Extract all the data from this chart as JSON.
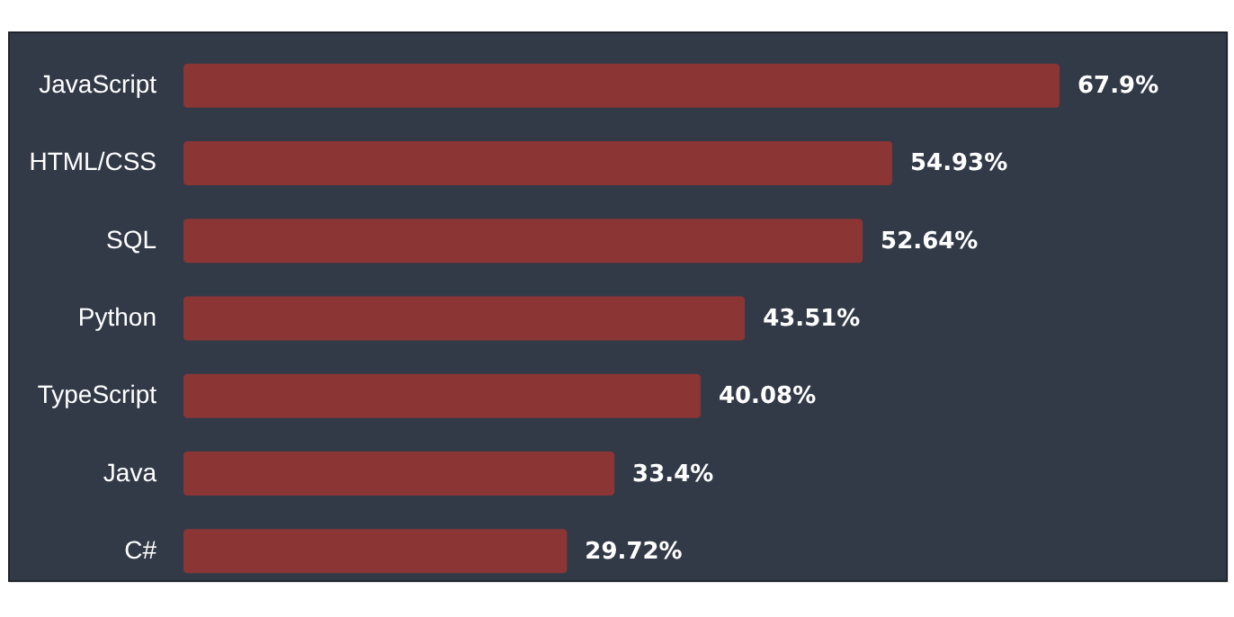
{
  "chart_data": {
    "type": "bar",
    "orientation": "horizontal",
    "data_labels": true,
    "categories": [
      "JavaScript",
      "HTML/CSS",
      "SQL",
      "Python",
      "TypeScript",
      "Java",
      "C#"
    ],
    "values": [
      67.9,
      54.93,
      52.64,
      43.51,
      40.08,
      33.4,
      29.72
    ],
    "value_labels": [
      "67.9%",
      "54.93%",
      "52.64%",
      "43.51%",
      "40.08%",
      "33.4%",
      "29.72%"
    ],
    "color": "#8b3535"
  }
}
